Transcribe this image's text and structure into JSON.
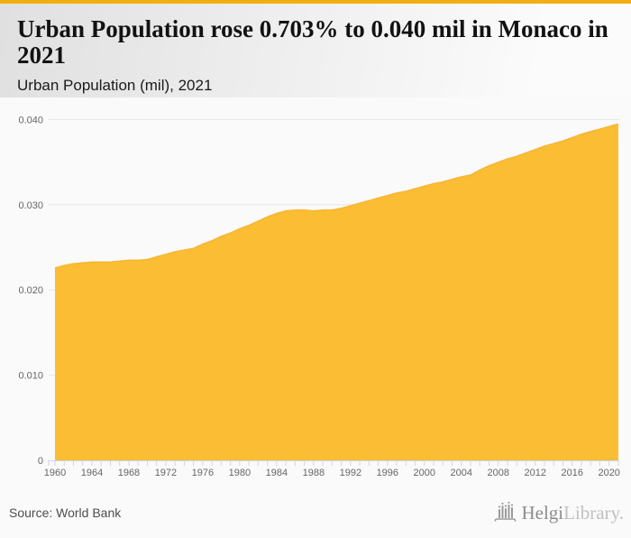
{
  "header": {
    "title": "Urban Population rose 0.703% to 0.040 mil in Monaco in 2021",
    "subtitle": "Urban Population (mil), 2021"
  },
  "footer": {
    "source": "Source: World Bank",
    "logo": {
      "brand_primary": "Helgi",
      "brand_secondary": "Library."
    }
  },
  "colors": {
    "accent_bar": "#F2AE0D",
    "area_fill": "#FABD33",
    "area_line": "#F3AE24",
    "grid": "#E6E6E6",
    "axis": "#CCD6EB",
    "tick": "#CCD6EB",
    "axis_label": "#666666",
    "logo_gray": "#9A9A9A"
  },
  "chart_data": {
    "type": "area",
    "title": "Urban Population rose 0.703% to 0.040 mil in Monaco in 2021",
    "subtitle": "Urban Population (mil), 2021",
    "xlabel": "",
    "ylabel": "",
    "x": [
      1960,
      1961,
      1962,
      1963,
      1964,
      1965,
      1966,
      1967,
      1968,
      1969,
      1970,
      1971,
      1972,
      1973,
      1974,
      1975,
      1976,
      1977,
      1978,
      1979,
      1980,
      1981,
      1982,
      1983,
      1984,
      1985,
      1986,
      1987,
      1988,
      1989,
      1990,
      1991,
      1992,
      1993,
      1994,
      1995,
      1996,
      1997,
      1998,
      1999,
      2000,
      2001,
      2002,
      2003,
      2004,
      2005,
      2006,
      2007,
      2008,
      2009,
      2010,
      2011,
      2012,
      2013,
      2014,
      2015,
      2016,
      2017,
      2018,
      2019,
      2020,
      2021
    ],
    "values": [
      0.0226,
      0.0229,
      0.0231,
      0.0232,
      0.0233,
      0.0233,
      0.0233,
      0.0234,
      0.0235,
      0.0235,
      0.0236,
      0.0239,
      0.0242,
      0.0245,
      0.0247,
      0.0249,
      0.0254,
      0.0258,
      0.0263,
      0.0267,
      0.0272,
      0.0276,
      0.0281,
      0.0286,
      0.029,
      0.0293,
      0.0294,
      0.0294,
      0.0293,
      0.0294,
      0.0294,
      0.0296,
      0.0299,
      0.0302,
      0.0305,
      0.0308,
      0.0311,
      0.0314,
      0.0316,
      0.0319,
      0.0322,
      0.0325,
      0.0327,
      0.033,
      0.0333,
      0.0335,
      0.0341,
      0.0346,
      0.035,
      0.0354,
      0.0357,
      0.0361,
      0.0365,
      0.0369,
      0.0372,
      0.0375,
      0.0379,
      0.0383,
      0.0386,
      0.0389,
      0.0392,
      0.0395
    ],
    "xlim": [
      1960,
      2021
    ],
    "ylim": [
      0,
      0.04
    ],
    "yticks": [
      0,
      0.01,
      0.02,
      0.03,
      0.04
    ],
    "ytick_labels": [
      "0",
      "0.010",
      "0.020",
      "0.030",
      "0.040"
    ],
    "xticks": [
      1960,
      1964,
      1968,
      1972,
      1976,
      1980,
      1984,
      1988,
      1992,
      1996,
      2000,
      2004,
      2008,
      2012,
      2016,
      2020
    ],
    "xtick_labels": [
      "1960",
      "1964",
      "1968",
      "1972",
      "1976",
      "1980",
      "1984",
      "1988",
      "1992",
      "1996",
      "2000",
      "2004",
      "2008",
      "2012",
      "2016",
      "2020"
    ],
    "grid": true,
    "legend": "none"
  }
}
